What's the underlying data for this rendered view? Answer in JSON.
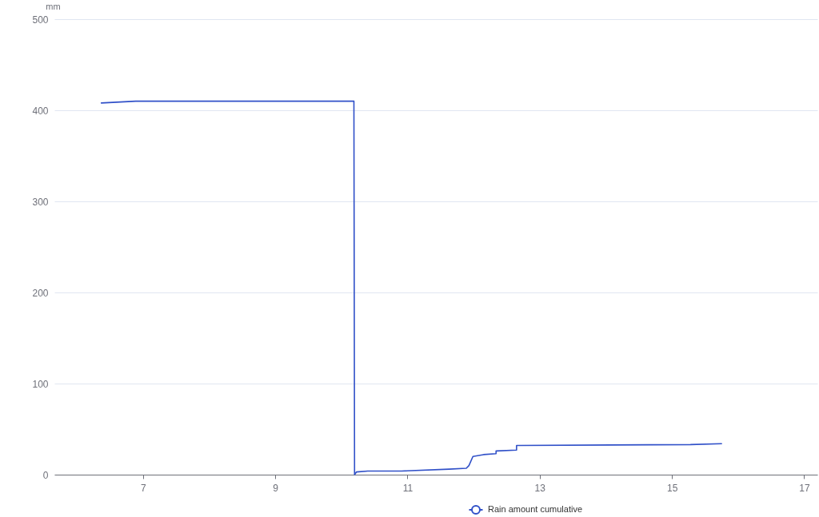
{
  "chart_data": {
    "type": "line",
    "ylabel": "mm",
    "x": [
      6.37,
      6.89,
      10.19,
      10.2,
      10.23,
      10.4,
      10.91,
      11.63,
      11.89,
      11.93,
      11.99,
      12.15,
      12.34,
      12.34,
      12.65,
      12.65,
      15.28,
      15.75
    ],
    "series": [
      {
        "name": "Rain amount cumulative",
        "color": "#3050c8",
        "values": [
          408,
          410,
          410,
          0,
          3,
          4,
          4,
          6,
          7,
          10,
          20,
          22,
          23,
          26,
          27,
          32,
          33,
          34
        ]
      }
    ],
    "xlim": [
      5.66,
      17.2
    ],
    "xticks": [
      7,
      9,
      11,
      13,
      15,
      17
    ],
    "ylim": [
      0,
      500
    ],
    "yticks": [
      0,
      100,
      200,
      300,
      400,
      500
    ],
    "grid": "y",
    "legend": "bottom",
    "marker": "none",
    "line_style": "solid"
  }
}
